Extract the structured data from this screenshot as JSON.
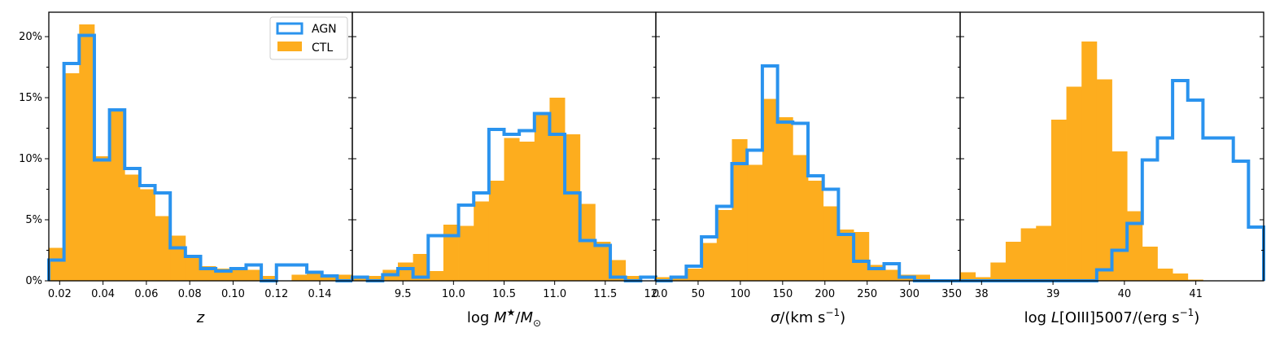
{
  "colors": {
    "agn": "#2a93ee",
    "ctl": "#fdad1e"
  },
  "legend": {
    "agn_label": "AGN",
    "ctl_label": "CTL",
    "placement": "top-right of first panel"
  },
  "y_axis": {
    "ticks": [
      0,
      5,
      10,
      15,
      20
    ],
    "tick_labels": [
      "0%",
      "5%",
      "10%",
      "15%",
      "20%"
    ],
    "ylim": [
      0,
      22
    ]
  },
  "chart_data": [
    {
      "type": "bar",
      "xlabel_main": "z",
      "xlabel_unit": "",
      "xlim": [
        0.015,
        0.155
      ],
      "xticks": [
        0.02,
        0.04,
        0.06,
        0.08,
        0.1,
        0.12,
        0.14
      ],
      "xtick_labels": [
        "0.02",
        "0.04",
        "0.06",
        "0.08",
        "0.10",
        "0.12",
        "0.14"
      ],
      "bin_edges": [
        0.015,
        0.022,
        0.029,
        0.036,
        0.043,
        0.05,
        0.057,
        0.064,
        0.071,
        0.078,
        0.085,
        0.092,
        0.099,
        0.106,
        0.113,
        0.12,
        0.127,
        0.134,
        0.141,
        0.148,
        0.155
      ],
      "series": [
        {
          "name": "CTL",
          "style": "filled",
          "values": [
            2.7,
            17.0,
            21.0,
            10.2,
            13.9,
            8.7,
            7.5,
            5.3,
            3.7,
            2.0,
            1.2,
            1.0,
            0.9,
            0.9,
            0.4,
            0.0,
            0.5,
            0.6,
            0.5,
            0.5
          ]
        },
        {
          "name": "AGN",
          "style": "step",
          "values": [
            1.7,
            17.8,
            20.1,
            9.9,
            14.0,
            9.2,
            7.8,
            7.2,
            2.7,
            2.0,
            1.0,
            0.8,
            1.0,
            1.3,
            0.0,
            1.3,
            1.3,
            0.7,
            0.4,
            0.0
          ]
        }
      ]
    },
    {
      "type": "bar",
      "xlabel_main": "log M★/M⊙",
      "xlabel_unit": "",
      "xlim": [
        9.0,
        12.0
      ],
      "xticks": [
        9.5,
        10.0,
        10.5,
        11.0,
        11.5,
        12.0
      ],
      "xtick_labels": [
        "9.5",
        "10.0",
        "10.5",
        "11.0",
        "11.5",
        "12.0"
      ],
      "bin_edges": [
        9.0,
        9.15,
        9.3,
        9.45,
        9.6,
        9.75,
        9.9,
        10.05,
        10.2,
        10.35,
        10.5,
        10.65,
        10.8,
        10.95,
        11.1,
        11.25,
        11.4,
        11.55,
        11.7,
        11.85,
        12.0
      ],
      "series": [
        {
          "name": "CTL",
          "style": "filled",
          "values": [
            0.3,
            0.4,
            0.9,
            1.5,
            2.2,
            0.8,
            4.6,
            4.5,
            6.5,
            8.2,
            11.7,
            11.4,
            13.8,
            15.0,
            12.0,
            6.3,
            3.2,
            1.7,
            0.4,
            0.0
          ]
        },
        {
          "name": "AGN",
          "style": "step",
          "values": [
            0.3,
            0.0,
            0.5,
            1.0,
            0.3,
            3.7,
            3.7,
            6.2,
            7.2,
            12.4,
            12.0,
            12.3,
            13.7,
            12.0,
            7.2,
            3.3,
            2.9,
            0.3,
            0.0,
            0.3
          ]
        }
      ]
    },
    {
      "type": "bar",
      "xlabel_main": "σ/",
      "xlabel_unit": "(km s",
      "xlabel_exp": "−1",
      "xlabel_tail": ")",
      "xlim": [
        0,
        360
      ],
      "xticks": [
        0,
        50,
        100,
        150,
        200,
        250,
        300,
        350
      ],
      "xtick_labels": [
        "0",
        "50",
        "100",
        "150",
        "200",
        "250",
        "300",
        "350"
      ],
      "bin_edges": [
        0,
        18,
        36,
        54,
        72,
        90,
        108,
        126,
        144,
        162,
        180,
        198,
        216,
        234,
        252,
        270,
        288,
        306,
        324,
        342,
        360
      ],
      "series": [
        {
          "name": "CTL",
          "style": "filled",
          "values": [
            0.3,
            0.4,
            1.0,
            3.1,
            5.8,
            11.6,
            9.5,
            14.9,
            13.4,
            10.3,
            8.2,
            6.1,
            4.2,
            4.0,
            1.3,
            0.9,
            0.5,
            0.5,
            0.0,
            0.0
          ]
        },
        {
          "name": "AGN",
          "style": "step",
          "values": [
            0.0,
            0.3,
            1.2,
            3.6,
            6.1,
            9.6,
            10.7,
            17.6,
            13.0,
            12.9,
            8.6,
            7.5,
            3.8,
            1.6,
            1.0,
            1.4,
            0.3,
            0.0,
            0.0,
            0.0
          ]
        }
      ]
    },
    {
      "type": "bar",
      "xlabel_main": "log L[OIII]5007/",
      "xlabel_unit": "(erg s",
      "xlabel_exp": "−1",
      "xlabel_tail": ")",
      "xlim": [
        37.7,
        41.95
      ],
      "xticks": [
        38,
        39,
        40,
        41
      ],
      "xtick_labels": [
        "38",
        "39",
        "40",
        "41"
      ],
      "bin_edges": [
        37.7,
        37.9125,
        38.125,
        38.3375,
        38.55,
        38.7625,
        38.975,
        39.1875,
        39.4,
        39.6125,
        39.825,
        40.0375,
        40.25,
        40.4625,
        40.675,
        40.8875,
        41.1,
        41.3125,
        41.525,
        41.7375,
        41.95
      ],
      "series": [
        {
          "name": "CTL",
          "style": "filled",
          "values": [
            0.7,
            0.3,
            1.5,
            3.2,
            4.3,
            4.5,
            13.2,
            15.9,
            19.6,
            16.5,
            10.6,
            5.7,
            2.8,
            1.0,
            0.6,
            0.1,
            0.0,
            0.0,
            0.0,
            0.0
          ]
        },
        {
          "name": "AGN",
          "style": "step",
          "values": [
            0.0,
            0.0,
            0.0,
            0.0,
            0.0,
            0.0,
            0.0,
            0.0,
            0.0,
            0.9,
            2.5,
            4.7,
            9.9,
            11.7,
            16.4,
            14.8,
            11.7,
            11.7,
            9.8,
            4.4
          ]
        }
      ]
    }
  ]
}
